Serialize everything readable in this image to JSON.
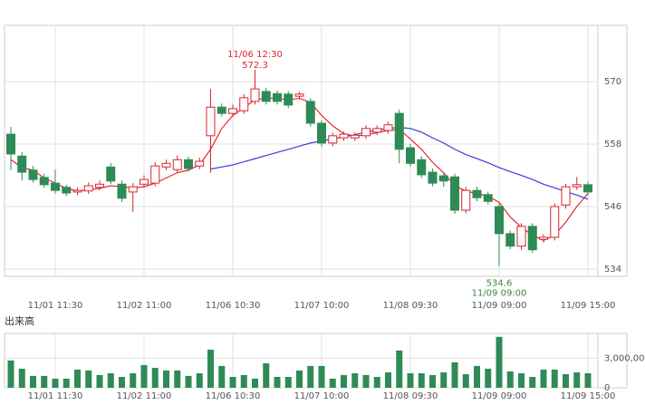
{
  "chart_data": {
    "type": "candlestick",
    "categories": [
      null,
      null,
      null,
      null,
      "11/01 11:30",
      null,
      null,
      null,
      null,
      null,
      null,
      null,
      "11/02 11:00",
      null,
      null,
      null,
      null,
      null,
      null,
      null,
      "11/06 10:30",
      null,
      null,
      null,
      null,
      null,
      null,
      null,
      "11/07 10:00",
      null,
      null,
      null,
      null,
      null,
      null,
      null,
      "11/08 09:30",
      null,
      null,
      null,
      null,
      null,
      null,
      null,
      "11/09 09:00",
      null,
      null,
      null,
      null,
      null,
      null,
      null,
      "11/09 15:00"
    ],
    "open": [
      559.9,
      555.7,
      553,
      551.6,
      550.5,
      549.7,
      548.8,
      549,
      549.7,
      553.6,
      550.3,
      548.8,
      550.3,
      550.5,
      553.6,
      553.1,
      555,
      553.8,
      559.6,
      565.1,
      563.9,
      564.4,
      566.2,
      568.1,
      567.7,
      567.6,
      567.2,
      566.2,
      562,
      558.2,
      559.2,
      559.2,
      559.6,
      560.3,
      560.6,
      563.9,
      557.3,
      555,
      552.6,
      551.9,
      551.7,
      545.3,
      549.1,
      548.3,
      546,
      540.8,
      538.4,
      542.2,
      539.7,
      540.1,
      546.3,
      549.8,
      550.2
    ],
    "high": [
      561.3,
      556.5,
      553.8,
      552.3,
      553.1,
      550.2,
      549.6,
      550.6,
      551,
      554.4,
      551,
      550.5,
      552,
      554.5,
      555,
      555.8,
      555.6,
      555.4,
      568.6,
      565.8,
      565.6,
      567.6,
      572.3,
      568.8,
      568.3,
      568.2,
      568,
      566.8,
      562.6,
      560.2,
      560.4,
      560.3,
      561.6,
      561.6,
      562.3,
      564.6,
      558,
      555.7,
      553.3,
      552.5,
      552.3,
      549.8,
      549.8,
      548.9,
      546.6,
      541.4,
      542.8,
      542.8,
      540.7,
      546.6,
      550.4,
      551.7,
      550.8
    ],
    "low": [
      553,
      551,
      550.6,
      549.6,
      548.5,
      548,
      548.2,
      548.4,
      549.1,
      550.3,
      546.9,
      545,
      549.6,
      549.9,
      553,
      552.5,
      552.7,
      553.2,
      552.5,
      563.3,
      563.3,
      563.8,
      565.6,
      565.6,
      565.6,
      564.9,
      566.6,
      561.4,
      557.5,
      557.6,
      558.6,
      558.6,
      559,
      559.7,
      560,
      554.3,
      553.7,
      551.5,
      549.9,
      549.8,
      544.6,
      544.7,
      547,
      546.4,
      534.6,
      537.8,
      537.7,
      537.1,
      539.1,
      539.5,
      545.6,
      549.2,
      548.2
    ],
    "close": [
      556.1,
      552.6,
      551.2,
      550.2,
      549.1,
      548.6,
      549.1,
      550,
      550.3,
      550.9,
      547.6,
      549.8,
      551.2,
      553.8,
      554.3,
      555,
      553.3,
      554.7,
      565.1,
      563.9,
      564.8,
      566.9,
      568.6,
      566.2,
      566.2,
      565.5,
      567.6,
      562,
      558.2,
      559.6,
      559.9,
      559.7,
      561,
      561,
      561.7,
      557,
      554.3,
      552.1,
      550.5,
      550.9,
      545.3,
      549.1,
      547.7,
      547,
      540.8,
      538.4,
      542.2,
      537.7,
      540.1,
      546,
      549.8,
      550.2,
      548.8
    ],
    "up_color": "#d9252e",
    "down_color": "#2e8b57",
    "series": [
      {
        "color": "#e8282c",
        "values": [
          555,
          553.5,
          553,
          551.5,
          550.5,
          549.5,
          549,
          549.2,
          549.5,
          550,
          549.8,
          549.6,
          549.8,
          550.5,
          551.5,
          552.5,
          553,
          554,
          557,
          561,
          563.5,
          565,
          566.5,
          566.8,
          566.8,
          566.5,
          566.8,
          566,
          563.5,
          561.5,
          560,
          559.5,
          559.8,
          560.2,
          560.6,
          560.8,
          559,
          557,
          554.5,
          552.5,
          550,
          549,
          548.5,
          548,
          546.8,
          544,
          542,
          540.5,
          539.5,
          540.5,
          543,
          546,
          548.5
        ]
      },
      {
        "color": "#3b3bdc",
        "values": [
          null,
          null,
          null,
          null,
          null,
          null,
          null,
          null,
          null,
          null,
          null,
          null,
          null,
          null,
          null,
          null,
          null,
          null,
          553.2,
          553.6,
          554,
          554.6,
          555.2,
          555.8,
          556.4,
          557,
          557.6,
          558.2,
          558.6,
          559,
          559.4,
          559.8,
          560.3,
          560.7,
          561,
          561.2,
          561,
          560.3,
          559.2,
          558.2,
          557,
          556,
          555.2,
          554.4,
          553.5,
          552.7,
          552,
          551.2,
          550.3,
          549.6,
          548.9,
          548.2,
          547.4
        ]
      }
    ],
    "ylim": [
      532.6,
      580.8
    ],
    "yticks": [
      534,
      546,
      558,
      570
    ],
    "max_label": {
      "time": "11/06 12:30"
    },
    "min_label": {
      "time": "11/09 09:00"
    },
    "volume_title": "出来高",
    "volume_color": "#2e8b57",
    "volume": [
      2760000,
      1930000,
      1200000,
      1200000,
      920000,
      920000,
      1840000,
      1750000,
      1290000,
      1470000,
      1100000,
      1470000,
      2300000,
      2020000,
      1750000,
      1750000,
      1200000,
      1470000,
      3860000,
      2210000,
      1100000,
      1290000,
      920000,
      2480000,
      1100000,
      1100000,
      1750000,
      2210000,
      2210000,
      920000,
      1290000,
      1470000,
      1290000,
      1100000,
      1560000,
      3770000,
      1470000,
      1470000,
      1290000,
      1560000,
      2580000,
      1380000,
      2210000,
      1930000,
      5150000,
      1660000,
      1470000,
      1100000,
      1840000,
      1840000,
      1380000,
      1560000,
      1470000
    ],
    "volume_ylim": [
      0,
      5500000
    ],
    "volume_yticks": [
      0,
      {
        "value": 3000000,
        "label": "3,000,000"
      }
    ]
  }
}
